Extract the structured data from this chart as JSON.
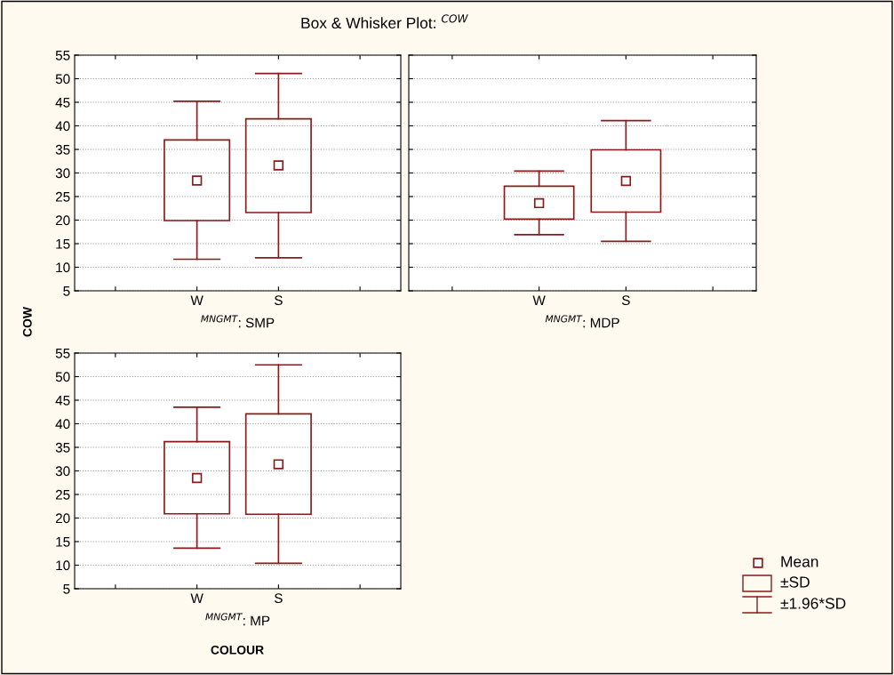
{
  "chart_data": [
    {
      "type": "box",
      "title": "Box & Whisker Plot: $^{COW}$",
      "ylabel": "COW",
      "xlabel": "$^{MNGMT}$: SMP",
      "categories": [
        "W",
        "S"
      ],
      "color": "#8b1a1a",
      "ylim": [
        5,
        55
      ],
      "yticks": [
        5,
        10,
        15,
        20,
        25,
        30,
        35,
        40,
        45,
        50,
        55
      ],
      "grid": "y",
      "marker": "square",
      "boxes": [
        {
          "low": 11.7,
          "q1": 19.9,
          "q3": 37.0,
          "high": 45.2,
          "mean": 28.4
        },
        {
          "low": 12.0,
          "q1": 21.6,
          "q3": 41.5,
          "high": 51.1,
          "mean": 31.6
        }
      ]
    },
    {
      "type": "box",
      "xlabel": "$^{MNGMT}$: MDP",
      "categories": [
        "W",
        "S"
      ],
      "color": "#8b1a1a",
      "ylim": [
        5,
        55
      ],
      "yticks": [
        5,
        10,
        15,
        20,
        25,
        30,
        35,
        40,
        45,
        50,
        55
      ],
      "grid": "y",
      "marker": "square",
      "tick_labels": "x",
      "boxes": [
        {
          "low": 16.9,
          "q1": 20.2,
          "q3": 27.2,
          "high": 30.4,
          "mean": 23.6
        },
        {
          "low": 15.5,
          "q1": 21.7,
          "q3": 34.9,
          "high": 41.1,
          "mean": 28.3
        }
      ]
    },
    {
      "type": "box",
      "xlabel": "$^{MNGMT}$: MP",
      "annotations": [
        "COLOUR"
      ],
      "categories": [
        "W",
        "S"
      ],
      "color": "#8b1a1a",
      "ylim": [
        5,
        55
      ],
      "yticks": [
        5,
        10,
        15,
        20,
        25,
        30,
        35,
        40,
        45,
        50,
        55
      ],
      "grid": "y",
      "marker": "square",
      "boxes": [
        {
          "low": 13.6,
          "q1": 20.9,
          "q3": 36.2,
          "high": 43.5,
          "mean": 28.5
        },
        {
          "low": 10.4,
          "q1": 20.8,
          "q3": 42.1,
          "high": 52.5,
          "mean": 31.4
        }
      ]
    },
    {
      "type": "other",
      "annotations": [
        "Mean",
        "±SD",
        "±1.96*SD"
      ]
    }
  ]
}
